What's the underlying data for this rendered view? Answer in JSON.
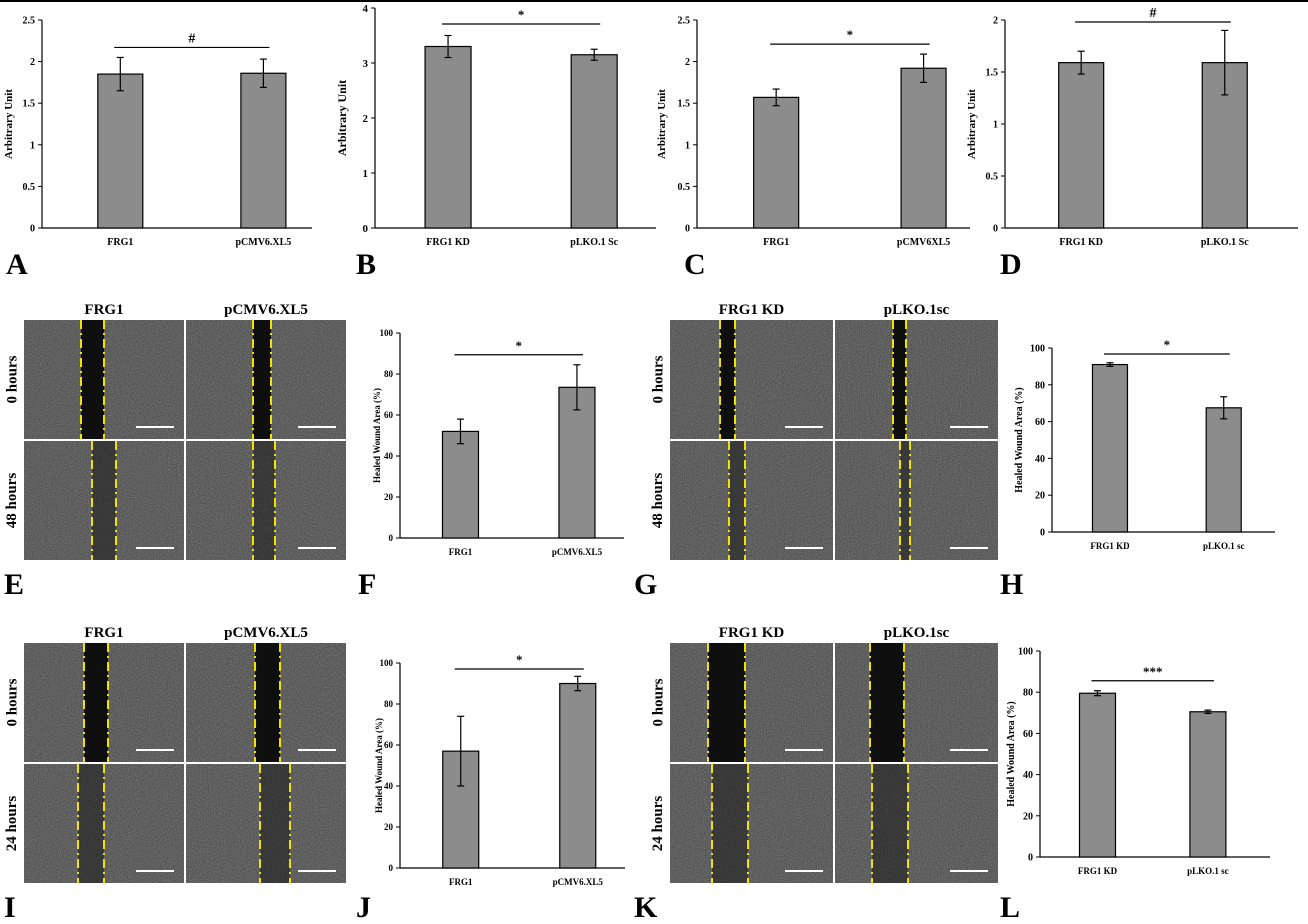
{
  "panels": [
    {
      "id": "A",
      "chart_data": {
        "type": "bar",
        "categories": [
          "FRG1",
          "pCMV6.XL5"
        ],
        "values": [
          1.85,
          1.86
        ],
        "errors": [
          0.2,
          0.17
        ],
        "ylabel": "Arbitrary Unit",
        "ylim": [
          0,
          2.5
        ],
        "yticks": [
          0,
          0.5,
          1,
          1.5,
          2,
          2.5
        ],
        "significance": "#"
      }
    },
    {
      "id": "B",
      "chart_data": {
        "type": "bar",
        "categories": [
          "FRG1 KD",
          "pLKO.1 Sc"
        ],
        "values": [
          3.3,
          3.15
        ],
        "errors": [
          0.2,
          0.1
        ],
        "ylabel": "Arbitrary Unit",
        "ylim": [
          0,
          4
        ],
        "yticks": [
          0,
          1,
          2,
          3,
          4
        ],
        "significance": "*"
      }
    },
    {
      "id": "C",
      "chart_data": {
        "type": "bar",
        "categories": [
          "FRG1",
          "pCMV6XL5"
        ],
        "values": [
          1.57,
          1.92
        ],
        "errors": [
          0.1,
          0.17
        ],
        "ylabel": "Arbitrary Unit",
        "ylim": [
          0,
          2.5
        ],
        "yticks": [
          0,
          0.5,
          1,
          1.5,
          2,
          2.5
        ],
        "significance": "*"
      }
    },
    {
      "id": "D",
      "chart_data": {
        "type": "bar",
        "categories": [
          "FRG1 KD",
          "pLKO.1 Sc"
        ],
        "values": [
          1.59,
          1.59
        ],
        "errors": [
          0.11,
          0.31
        ],
        "ylabel": "Arbitrary Unit",
        "ylim": [
          0,
          2
        ],
        "yticks": [
          0,
          0.5,
          1,
          1.5,
          2
        ],
        "significance": "#"
      }
    },
    {
      "id": "E",
      "micrograph": {
        "columns": [
          "FRG1",
          "pCMV6.XL5"
        ],
        "rows": [
          "0 hours",
          "48 hours"
        ]
      }
    },
    {
      "id": "F",
      "chart_data": {
        "type": "bar",
        "categories": [
          "FRG1",
          "pCMV6.XL5"
        ],
        "values": [
          52,
          73.5
        ],
        "errors": [
          6,
          11
        ],
        "ylabel": "Healed Wound Area (%)",
        "ylim": [
          0,
          100
        ],
        "yticks": [
          0,
          20,
          40,
          60,
          80,
          100
        ],
        "significance": "*"
      }
    },
    {
      "id": "G",
      "micrograph": {
        "columns": [
          "FRG1 KD",
          "pLKO.1sc"
        ],
        "rows": [
          "0 hours",
          "48 hours"
        ]
      }
    },
    {
      "id": "H",
      "chart_data": {
        "type": "bar",
        "categories": [
          "FRG1 KD",
          "pLKO.1 sc"
        ],
        "values": [
          91,
          67.5
        ],
        "errors": [
          1,
          6
        ],
        "ylabel": "Healed Wound Area (%)",
        "ylim": [
          0,
          100
        ],
        "yticks": [
          0,
          20,
          40,
          60,
          80,
          100
        ],
        "significance": "*"
      }
    },
    {
      "id": "I",
      "micrograph": {
        "columns": [
          "FRG1",
          "pCMV6.XL5"
        ],
        "rows": [
          "0 hours",
          "24 hours"
        ]
      }
    },
    {
      "id": "J",
      "chart_data": {
        "type": "bar",
        "categories": [
          "FRG1",
          "pCMV6.XL5"
        ],
        "values": [
          57,
          90
        ],
        "errors": [
          17,
          3.5
        ],
        "ylabel": "Healed Wound Area (%)",
        "ylim": [
          0,
          100
        ],
        "yticks": [
          0,
          20,
          40,
          60,
          80,
          100
        ],
        "significance": "*"
      }
    },
    {
      "id": "K",
      "micrograph": {
        "columns": [
          "FRG1 KD",
          "pLKO.1sc"
        ],
        "rows": [
          "0 hours",
          "24 hours"
        ]
      }
    },
    {
      "id": "L",
      "chart_data": {
        "type": "bar",
        "categories": [
          "FRG1 KD",
          "pLKO.1 sc"
        ],
        "values": [
          79.5,
          70.5
        ],
        "errors": [
          1.2,
          0.8
        ],
        "ylabel": "Healed Wound Area (%)",
        "ylim": [
          0,
          100
        ],
        "yticks": [
          0,
          20,
          40,
          60,
          80,
          100
        ],
        "significance": "***"
      }
    }
  ],
  "colors": {
    "bar": "#8c8c8c",
    "cell_bg": "#4a4a4a",
    "gap": "#0b0b0b",
    "guide": "#f2e200",
    "scale": "#ffffff"
  }
}
